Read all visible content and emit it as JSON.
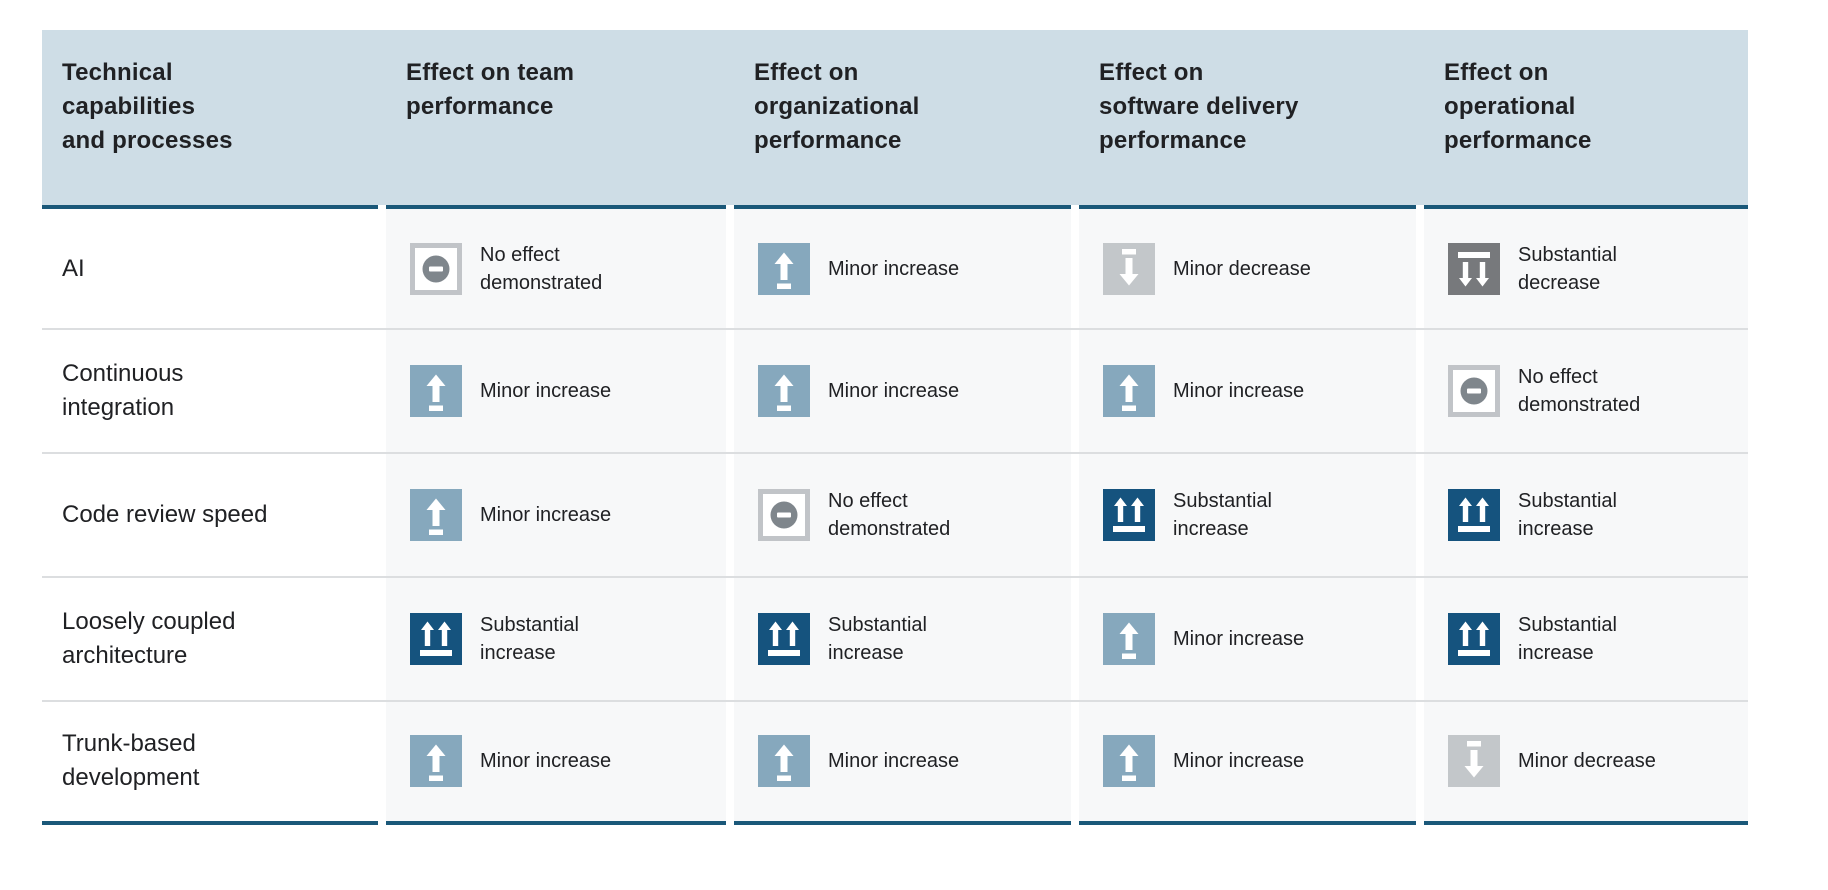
{
  "colors": {
    "page_bg": "#ffffff",
    "header_bg": "#cedde6",
    "accent_line": "#1a5879",
    "cell_bg": "#f7f8f9",
    "row_label_bg": "#ffffff",
    "separator": "#dcdee0",
    "text": "#202124",
    "icon_glyph": "#ffffff",
    "minor_increase": "#86a8bd",
    "substantial_increase": "#15537e",
    "minor_decrease": "#c3c7ca",
    "substantial_decrease": "#77797c",
    "no_effect_border": "#c1c4c8",
    "no_effect_circle": "#7f868c"
  },
  "table": {
    "headers": [
      "Technical\ncapabilities\nand processes",
      "Effect on team\nperformance",
      "Effect on\norganizational\nperformance",
      "Effect on\nsoftware delivery\nperformance",
      "Effect on\noperational\nperformance"
    ],
    "effect_types": {
      "no_effect": {
        "label": "No effect\ndemonstrated",
        "icon": "no-effect-icon"
      },
      "minor_increase": {
        "label": "Minor increase",
        "icon": "minor-increase-icon"
      },
      "substantial_increase": {
        "label": "Substantial\nincrease",
        "icon": "substantial-increase-icon"
      },
      "minor_decrease": {
        "label": "Minor decrease",
        "icon": "minor-decrease-icon"
      },
      "substantial_decrease": {
        "label": "Substantial\ndecrease",
        "icon": "substantial-decrease-icon"
      }
    },
    "rows": [
      {
        "label": "AI",
        "cells": [
          "no_effect",
          "minor_increase",
          "minor_decrease",
          "substantial_decrease"
        ]
      },
      {
        "label": "Continuous\nintegration",
        "cells": [
          "minor_increase",
          "minor_increase",
          "minor_increase",
          "no_effect"
        ]
      },
      {
        "label": "Code review speed",
        "cells": [
          "minor_increase",
          "no_effect",
          "substantial_increase",
          "substantial_increase"
        ]
      },
      {
        "label": "Loosely coupled\narchitecture",
        "cells": [
          "substantial_increase",
          "substantial_increase",
          "minor_increase",
          "substantial_increase"
        ]
      },
      {
        "label": "Trunk-based\ndevelopment",
        "cells": [
          "minor_increase",
          "minor_increase",
          "minor_increase",
          "minor_decrease"
        ]
      }
    ]
  },
  "chart_data": {
    "type": "table",
    "title": "",
    "columns": [
      "Technical capabilities and processes",
      "Effect on team performance",
      "Effect on organizational performance",
      "Effect on software delivery performance",
      "Effect on operational performance"
    ],
    "rows": [
      {
        "capability": "AI",
        "effects": [
          "No effect demonstrated",
          "Minor increase",
          "Minor decrease",
          "Substantial decrease"
        ]
      },
      {
        "capability": "Continuous integration",
        "effects": [
          "Minor increase",
          "Minor increase",
          "Minor increase",
          "No effect demonstrated"
        ]
      },
      {
        "capability": "Code review speed",
        "effects": [
          "Minor increase",
          "No effect demonstrated",
          "Substantial increase",
          "Substantial increase"
        ]
      },
      {
        "capability": "Loosely coupled architecture",
        "effects": [
          "Substantial increase",
          "Substantial increase",
          "Minor increase",
          "Substantial increase"
        ]
      },
      {
        "capability": "Trunk-based development",
        "effects": [
          "Minor increase",
          "Minor increase",
          "Minor increase",
          "Minor decrease"
        ]
      }
    ],
    "legend_entries": [
      "Substantial increase",
      "Minor increase",
      "No effect demonstrated",
      "Minor decrease",
      "Substantial decrease"
    ],
    "layout_hints": {
      "grid": "row separators only",
      "header_position": "top"
    }
  }
}
